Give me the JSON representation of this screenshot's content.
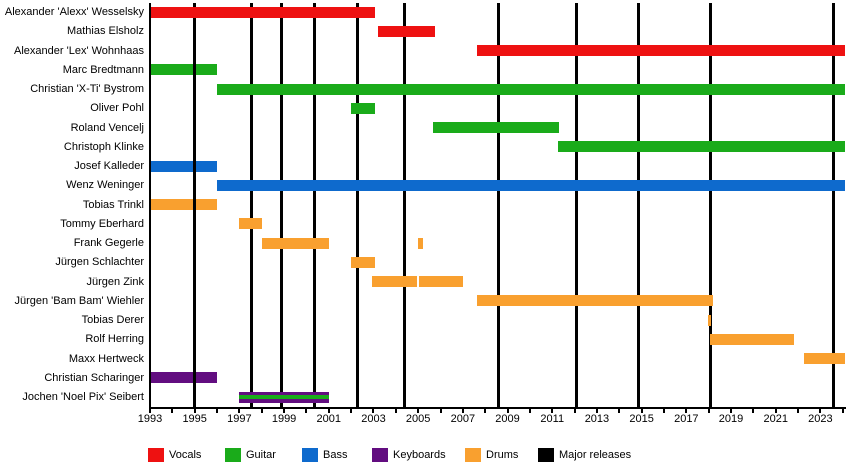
{
  "chart_data": {
    "type": "bar",
    "subtype": "membership-timeline-gantt",
    "title": "",
    "x_axis": {
      "min": 1993,
      "max": 2024.1,
      "tick_labels": [
        "1993",
        "1995",
        "1997",
        "1999",
        "2001",
        "2003",
        "2005",
        "2007",
        "2009",
        "2011",
        "2013",
        "2015",
        "2017",
        "2019",
        "2021",
        "2023"
      ],
      "minor_tick_every_year": true,
      "grid": "off"
    },
    "colors": {
      "vocals": "#ee1111",
      "guitar": "#1aab1a",
      "bass": "#0e6acd",
      "keyboards": "#620d80",
      "drums": "#f9a02f",
      "major_releases": "#000000"
    },
    "release_lines": {
      "color": "#000000",
      "years": [
        1995.0,
        1997.55,
        1998.9,
        2000.35,
        2002.3,
        2004.4,
        2008.6,
        2012.1,
        2014.85,
        2018.1,
        2023.6
      ],
      "front_years": [
        1995.0
      ]
    },
    "members": [
      {
        "name": "Alexander 'Alexx' Wesselsky",
        "segments": [
          {
            "role": "vocals",
            "start": 1993.05,
            "end": 2003.05
          }
        ]
      },
      {
        "name": "Mathias Elsholz",
        "segments": [
          {
            "role": "vocals",
            "start": 2003.2,
            "end": 2005.75
          }
        ]
      },
      {
        "name": "Alexander 'Lex' Wohnhaas",
        "segments": [
          {
            "role": "vocals",
            "start": 2007.65,
            "end": 2024.1
          }
        ]
      },
      {
        "name": "Marc Bredtmann",
        "segments": [
          {
            "role": "guitar",
            "start": 1993.05,
            "end": 1996.0
          }
        ]
      },
      {
        "name": "Christian 'X-Ti' Bystrom",
        "segments": [
          {
            "role": "guitar",
            "start": 1996.0,
            "end": 2024.1
          }
        ]
      },
      {
        "name": "Oliver Pohl",
        "segments": [
          {
            "role": "guitar",
            "start": 2002.0,
            "end": 2003.05
          }
        ]
      },
      {
        "name": "Roland Vencelj",
        "segments": [
          {
            "role": "guitar",
            "start": 2005.65,
            "end": 2011.3
          }
        ]
      },
      {
        "name": "Christoph Klinke",
        "segments": [
          {
            "role": "guitar",
            "start": 2011.25,
            "end": 2024.1
          }
        ]
      },
      {
        "name": "Josef Kalleder",
        "segments": [
          {
            "role": "bass",
            "start": 1993.05,
            "end": 1996.0
          }
        ]
      },
      {
        "name": "Wenz Weninger",
        "segments": [
          {
            "role": "bass",
            "start": 1996.0,
            "end": 2024.1
          }
        ]
      },
      {
        "name": "Tobias Trinkl",
        "segments": [
          {
            "role": "drums",
            "start": 1993.05,
            "end": 1996.0
          }
        ]
      },
      {
        "name": "Tommy Eberhard",
        "segments": [
          {
            "role": "drums",
            "start": 1997.0,
            "end": 1998.0
          }
        ]
      },
      {
        "name": "Frank Gegerle",
        "segments": [
          {
            "role": "drums",
            "start": 1998.0,
            "end": 2001.0
          },
          {
            "role": "drums",
            "start": 2005.0,
            "end": 2005.2
          }
        ]
      },
      {
        "name": "Jürgen Schlachter",
        "segments": [
          {
            "role": "drums",
            "start": 2002.0,
            "end": 2003.05
          }
        ]
      },
      {
        "name": "Jürgen Zink",
        "segments": [
          {
            "role": "drums",
            "start": 2002.95,
            "end": 2004.93
          },
          {
            "role": "drums",
            "start": 2005.05,
            "end": 2007.0
          }
        ]
      },
      {
        "name": "Jürgen 'Bam Bam' Wiehler",
        "segments": [
          {
            "role": "drums",
            "start": 2007.65,
            "end": 2018.2
          }
        ]
      },
      {
        "name": "Tobias Derer",
        "segments": [
          {
            "role": "drums",
            "start": 2017.95,
            "end": 2018.1
          }
        ]
      },
      {
        "name": "Rolf Herring",
        "segments": [
          {
            "role": "drums",
            "start": 2018.05,
            "end": 2021.8
          }
        ]
      },
      {
        "name": "Maxx Hertweck",
        "segments": [
          {
            "role": "drums",
            "start": 2022.25,
            "end": 2024.1
          }
        ]
      },
      {
        "name": "Christian Scharinger",
        "segments": [
          {
            "role": "keyboards",
            "start": 1993.05,
            "end": 1996.0
          }
        ]
      },
      {
        "name": "Jochen 'Noel Pix' Seibert",
        "segments": [
          {
            "role": "keyboards",
            "overlay_role": "guitar",
            "start": 1997.0,
            "end": 2001.0
          }
        ]
      }
    ],
    "legend": [
      {
        "label": "Vocals",
        "color_key": "vocals"
      },
      {
        "label": "Guitar",
        "color_key": "guitar"
      },
      {
        "label": "Bass",
        "color_key": "bass"
      },
      {
        "label": "Keyboards",
        "color_key": "keyboards"
      },
      {
        "label": "Drums",
        "color_key": "drums"
      },
      {
        "label": "Major releases",
        "color_key": "major_releases"
      }
    ]
  }
}
